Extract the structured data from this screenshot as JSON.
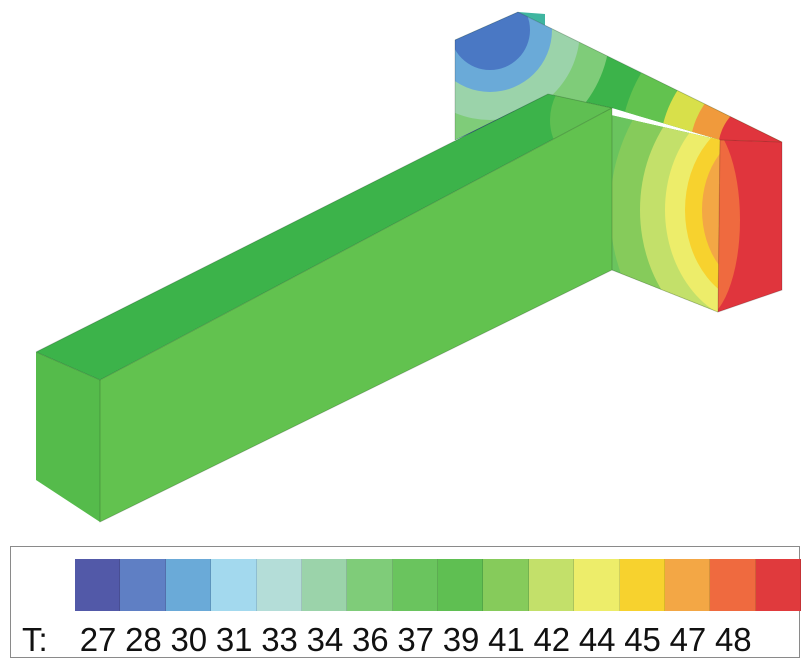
{
  "legend": {
    "title": "T:",
    "ticks": [
      "27",
      "28",
      "30",
      "31",
      "33",
      "34",
      "36",
      "37",
      "39",
      "41",
      "42",
      "44",
      "45",
      "47",
      "48"
    ],
    "colors": [
      "#5259a8",
      "#5f7fc4",
      "#6aaad8",
      "#a3d9ee",
      "#b4ddd8",
      "#9bd3aa",
      "#7fcc79",
      "#6ac45e",
      "#5fbf52",
      "#86cb5b",
      "#c3e06a",
      "#eded6a",
      "#f7d22e",
      "#f3a745",
      "#ef6a3f",
      "#e03a3d"
    ]
  },
  "field_colors": {
    "cold": "#3f4aa8",
    "cool": "#35a0d6",
    "teal": "#3fb5a0",
    "green": "#3cb34a",
    "light_green": "#62c24f",
    "yellow": "#d8e04a",
    "orange": "#f09a3c",
    "red": "#e0353d"
  }
}
